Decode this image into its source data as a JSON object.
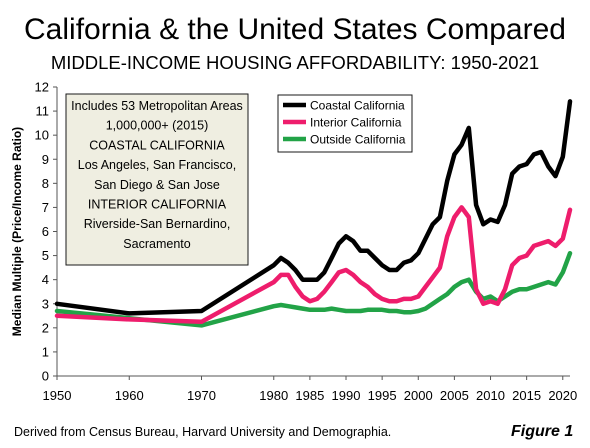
{
  "header": {
    "title": "California & the United States Compared",
    "subtitle": "MIDDLE-INCOME HOUSING AFFORDABILITY: 1950-2021"
  },
  "footer": {
    "source": "Derived from Census Bureau, Harvard University and Demographia.",
    "figure_label": "Figure 1"
  },
  "note_box": {
    "lines": [
      "Includes 53 Metropolitan Areas",
      "1,000,000+ (2015)",
      "COASTAL  CALIFORNIA",
      "Los Angeles, San Francisco,",
      "San Diego & San Jose",
      "INTERIOR CALIFORNIA",
      "Riverside-San Bernardino,",
      "Sacramento"
    ]
  },
  "chart_data": {
    "type": "line",
    "title": "California & the United States Compared",
    "subtitle": "MIDDLE-INCOME HOUSING AFFORDABILITY: 1950-2021",
    "ylabel": "Median Multiple (Price/Income Ratio)",
    "xlabel": "",
    "xlim": [
      1950,
      2021
    ],
    "ylim": [
      0,
      12
    ],
    "xticks": [
      1950,
      1960,
      1970,
      1980,
      1985,
      1990,
      1995,
      2000,
      2005,
      2010,
      2015,
      2020
    ],
    "yticks": [
      0,
      1,
      2,
      3,
      4,
      5,
      6,
      7,
      8,
      9,
      10,
      11,
      12
    ],
    "grid": false,
    "legend_position": "top-center",
    "series": [
      {
        "name": "Coastal California",
        "color": "#000000",
        "points": [
          [
            1950,
            3.0
          ],
          [
            1960,
            2.6
          ],
          [
            1970,
            2.7
          ],
          [
            1980,
            4.6
          ],
          [
            1981,
            4.9
          ],
          [
            1982,
            4.7
          ],
          [
            1983,
            4.4
          ],
          [
            1984,
            4.0
          ],
          [
            1985,
            4.0
          ],
          [
            1986,
            4.0
          ],
          [
            1987,
            4.3
          ],
          [
            1988,
            4.9
          ],
          [
            1989,
            5.5
          ],
          [
            1990,
            5.8
          ],
          [
            1991,
            5.6
          ],
          [
            1992,
            5.2
          ],
          [
            1993,
            5.2
          ],
          [
            1994,
            4.9
          ],
          [
            1995,
            4.6
          ],
          [
            1996,
            4.4
          ],
          [
            1997,
            4.4
          ],
          [
            1998,
            4.7
          ],
          [
            1999,
            4.8
          ],
          [
            2000,
            5.1
          ],
          [
            2001,
            5.7
          ],
          [
            2002,
            6.3
          ],
          [
            2003,
            6.6
          ],
          [
            2004,
            8.1
          ],
          [
            2005,
            9.2
          ],
          [
            2006,
            9.6
          ],
          [
            2007,
            10.3
          ],
          [
            2008,
            7.1
          ],
          [
            2009,
            6.3
          ],
          [
            2010,
            6.5
          ],
          [
            2011,
            6.4
          ],
          [
            2012,
            7.1
          ],
          [
            2013,
            8.4
          ],
          [
            2014,
            8.7
          ],
          [
            2015,
            8.8
          ],
          [
            2016,
            9.2
          ],
          [
            2017,
            9.3
          ],
          [
            2018,
            8.7
          ],
          [
            2019,
            8.3
          ],
          [
            2020,
            9.1
          ],
          [
            2021,
            11.4
          ]
        ]
      },
      {
        "name": "Interior California",
        "color": "#ee1d6c",
        "points": [
          [
            1950,
            2.5
          ],
          [
            1960,
            2.35
          ],
          [
            1970,
            2.25
          ],
          [
            1980,
            3.9
          ],
          [
            1981,
            4.2
          ],
          [
            1982,
            4.2
          ],
          [
            1983,
            3.7
          ],
          [
            1984,
            3.3
          ],
          [
            1985,
            3.1
          ],
          [
            1986,
            3.2
          ],
          [
            1987,
            3.5
          ],
          [
            1988,
            3.9
          ],
          [
            1989,
            4.3
          ],
          [
            1990,
            4.4
          ],
          [
            1991,
            4.2
          ],
          [
            1992,
            3.9
          ],
          [
            1993,
            3.7
          ],
          [
            1994,
            3.4
          ],
          [
            1995,
            3.2
          ],
          [
            1996,
            3.1
          ],
          [
            1997,
            3.1
          ],
          [
            1998,
            3.2
          ],
          [
            1999,
            3.2
          ],
          [
            2000,
            3.3
          ],
          [
            2001,
            3.7
          ],
          [
            2002,
            4.1
          ],
          [
            2003,
            4.5
          ],
          [
            2004,
            5.8
          ],
          [
            2005,
            6.6
          ],
          [
            2006,
            7.0
          ],
          [
            2007,
            6.6
          ],
          [
            2008,
            3.6
          ],
          [
            2009,
            3.0
          ],
          [
            2010,
            3.1
          ],
          [
            2011,
            3.0
          ],
          [
            2012,
            3.6
          ],
          [
            2013,
            4.6
          ],
          [
            2014,
            4.9
          ],
          [
            2015,
            5.0
          ],
          [
            2016,
            5.4
          ],
          [
            2017,
            5.5
          ],
          [
            2018,
            5.6
          ],
          [
            2019,
            5.4
          ],
          [
            2020,
            5.7
          ],
          [
            2021,
            6.9
          ]
        ]
      },
      {
        "name": "Outside California",
        "color": "#22a347",
        "points": [
          [
            1950,
            2.7
          ],
          [
            1960,
            2.4
          ],
          [
            1970,
            2.1
          ],
          [
            1980,
            2.9
          ],
          [
            1981,
            2.95
          ],
          [
            1982,
            2.9
          ],
          [
            1983,
            2.85
          ],
          [
            1984,
            2.8
          ],
          [
            1985,
            2.75
          ],
          [
            1986,
            2.75
          ],
          [
            1987,
            2.75
          ],
          [
            1988,
            2.8
          ],
          [
            1989,
            2.75
          ],
          [
            1990,
            2.7
          ],
          [
            1991,
            2.7
          ],
          [
            1992,
            2.7
          ],
          [
            1993,
            2.75
          ],
          [
            1994,
            2.75
          ],
          [
            1995,
            2.75
          ],
          [
            1996,
            2.7
          ],
          [
            1997,
            2.7
          ],
          [
            1998,
            2.65
          ],
          [
            1999,
            2.65
          ],
          [
            2000,
            2.7
          ],
          [
            2001,
            2.8
          ],
          [
            2002,
            3.0
          ],
          [
            2003,
            3.2
          ],
          [
            2004,
            3.4
          ],
          [
            2005,
            3.7
          ],
          [
            2006,
            3.9
          ],
          [
            2007,
            4.0
          ],
          [
            2008,
            3.5
          ],
          [
            2009,
            3.2
          ],
          [
            2010,
            3.3
          ],
          [
            2011,
            3.1
          ],
          [
            2012,
            3.3
          ],
          [
            2013,
            3.5
          ],
          [
            2014,
            3.6
          ],
          [
            2015,
            3.6
          ],
          [
            2016,
            3.7
          ],
          [
            2017,
            3.8
          ],
          [
            2018,
            3.9
          ],
          [
            2019,
            3.8
          ],
          [
            2020,
            4.3
          ],
          [
            2021,
            5.1
          ]
        ]
      }
    ]
  }
}
